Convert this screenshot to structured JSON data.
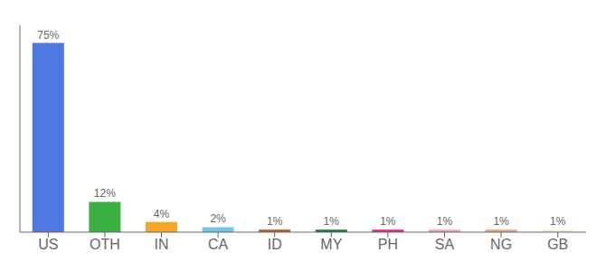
{
  "chart_data": {
    "type": "bar",
    "categories": [
      "US",
      "OTH",
      "IN",
      "CA",
      "ID",
      "MY",
      "PH",
      "SA",
      "NG",
      "GB"
    ],
    "values": [
      75,
      12,
      4,
      2,
      1,
      1,
      1,
      1,
      1,
      1
    ],
    "value_labels": [
      "75%",
      "12%",
      "4%",
      "2%",
      "1%",
      "1%",
      "1%",
      "1%",
      "1%",
      "1%"
    ],
    "data_labels": true,
    "colors": [
      "#4d79e0",
      "#3cb043",
      "#f5a623",
      "#6ec6e8",
      "#c0521f",
      "#1a7a35",
      "#e91e8c",
      "#f4a0b0",
      "#e8a080",
      "#f5f0d0"
    ],
    "ylim": [
      0,
      82
    ],
    "tick_labels": "x",
    "grid": false
  }
}
